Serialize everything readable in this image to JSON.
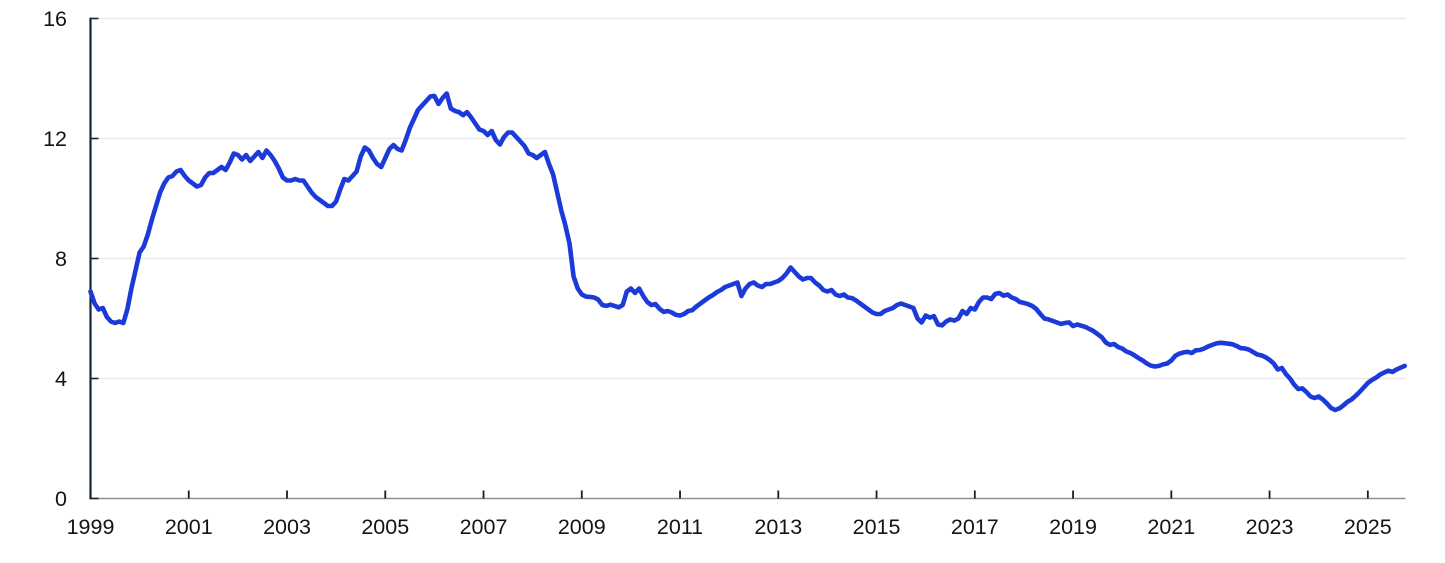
{
  "chart_data": {
    "type": "line",
    "title": "",
    "xlabel": "",
    "ylabel": "",
    "legend": "none",
    "grid": "horizontal",
    "line_color": "#1c3ad9",
    "gridline_color": "#e9e9e9",
    "y_axis_color": "#13283f",
    "x_axis_color": "#8d9298",
    "tick_color": "#1a1d21",
    "label_color": "#111418",
    "ylim": [
      0,
      16
    ],
    "y_ticks": [
      0,
      4,
      8,
      12,
      16
    ],
    "y_tick_labels": [
      "0",
      "4",
      "8",
      "12",
      "16"
    ],
    "x_tick_years": [
      1999,
      2001,
      2003,
      2005,
      2007,
      2009,
      2011,
      2013,
      2015,
      2017,
      2019,
      2021,
      2023,
      2025
    ],
    "x_tick_labels": [
      "1999",
      "2001",
      "2003",
      "2005",
      "2007",
      "2009",
      "2011",
      "2013",
      "2015",
      "2017",
      "2019",
      "2021",
      "2023",
      "2025"
    ],
    "x_start": "1999-01",
    "x_end": "2025-10",
    "x_frequency": "monthly",
    "values": [
      6.9,
      6.5,
      6.3,
      6.35,
      6.05,
      5.9,
      5.85,
      5.9,
      5.85,
      6.3,
      7.0,
      7.6,
      8.2,
      8.4,
      8.8,
      9.3,
      9.75,
      10.2,
      10.5,
      10.7,
      10.75,
      10.9,
      10.95,
      10.75,
      10.6,
      10.5,
      10.4,
      10.45,
      10.7,
      10.85,
      10.85,
      10.95,
      11.05,
      10.95,
      11.2,
      11.5,
      11.45,
      11.3,
      11.45,
      11.25,
      11.4,
      11.55,
      11.35,
      11.6,
      11.45,
      11.25,
      11.0,
      10.7,
      10.6,
      10.6,
      10.65,
      10.6,
      10.6,
      10.4,
      10.2,
      10.05,
      9.95,
      9.85,
      9.75,
      9.75,
      9.9,
      10.3,
      10.65,
      10.6,
      10.75,
      10.9,
      11.4,
      11.7,
      11.6,
      11.35,
      11.15,
      11.05,
      11.35,
      11.65,
      11.78,
      11.65,
      11.6,
      11.95,
      12.35,
      12.65,
      12.95,
      13.1,
      13.25,
      13.4,
      13.42,
      13.15,
      13.35,
      13.5,
      13.0,
      12.92,
      12.88,
      12.78,
      12.88,
      12.7,
      12.5,
      12.3,
      12.25,
      12.12,
      12.25,
      11.95,
      11.8,
      12.05,
      12.2,
      12.2,
      12.05,
      11.9,
      11.75,
      11.5,
      11.45,
      11.35,
      11.45,
      11.55,
      11.15,
      10.8,
      10.2,
      9.6,
      9.1,
      8.5,
      7.4,
      7.0,
      6.8,
      6.73,
      6.72,
      6.7,
      6.63,
      6.45,
      6.42,
      6.46,
      6.42,
      6.37,
      6.45,
      6.9,
      7.0,
      6.85,
      7.0,
      6.75,
      6.55,
      6.45,
      6.48,
      6.32,
      6.22,
      6.25,
      6.2,
      6.12,
      6.1,
      6.15,
      6.25,
      6.28,
      6.4,
      6.5,
      6.6,
      6.7,
      6.78,
      6.88,
      6.95,
      7.05,
      7.1,
      7.15,
      7.2,
      6.75,
      7.0,
      7.15,
      7.2,
      7.1,
      7.05,
      7.15,
      7.15,
      7.2,
      7.25,
      7.35,
      7.5,
      7.7,
      7.55,
      7.4,
      7.3,
      7.35,
      7.35,
      7.2,
      7.1,
      6.95,
      6.9,
      6.95,
      6.8,
      6.75,
      6.8,
      6.7,
      6.68,
      6.6,
      6.5,
      6.4,
      6.3,
      6.2,
      6.15,
      6.15,
      6.25,
      6.3,
      6.35,
      6.45,
      6.5,
      6.45,
      6.4,
      6.35,
      6.0,
      5.87,
      6.1,
      6.03,
      6.08,
      5.8,
      5.77,
      5.9,
      5.97,
      5.93,
      6.0,
      6.25,
      6.15,
      6.35,
      6.3,
      6.55,
      6.7,
      6.7,
      6.65,
      6.82,
      6.85,
      6.76,
      6.8,
      6.7,
      6.65,
      6.55,
      6.52,
      6.48,
      6.42,
      6.32,
      6.15,
      6.0,
      5.97,
      5.92,
      5.87,
      5.82,
      5.85,
      5.87,
      5.75,
      5.8,
      5.76,
      5.72,
      5.65,
      5.58,
      5.48,
      5.38,
      5.2,
      5.12,
      5.15,
      5.05,
      5.0,
      4.9,
      4.85,
      4.77,
      4.68,
      4.6,
      4.5,
      4.43,
      4.4,
      4.42,
      4.47,
      4.5,
      4.6,
      4.76,
      4.83,
      4.87,
      4.89,
      4.85,
      4.94,
      4.95,
      5.0,
      5.07,
      5.12,
      5.17,
      5.19,
      5.18,
      5.16,
      5.14,
      5.08,
      5.01,
      5.0,
      4.96,
      4.88,
      4.8,
      4.77,
      4.71,
      4.62,
      4.5,
      4.3,
      4.35,
      4.15,
      4.0,
      3.8,
      3.65,
      3.67,
      3.55,
      3.4,
      3.35,
      3.4,
      3.3,
      3.17,
      3.02,
      2.95,
      3.0,
      3.1,
      3.22,
      3.3,
      3.42,
      3.55,
      3.7,
      3.85,
      3.95,
      4.03,
      4.13,
      4.2,
      4.26,
      4.22,
      4.3,
      4.36,
      4.42
    ]
  }
}
